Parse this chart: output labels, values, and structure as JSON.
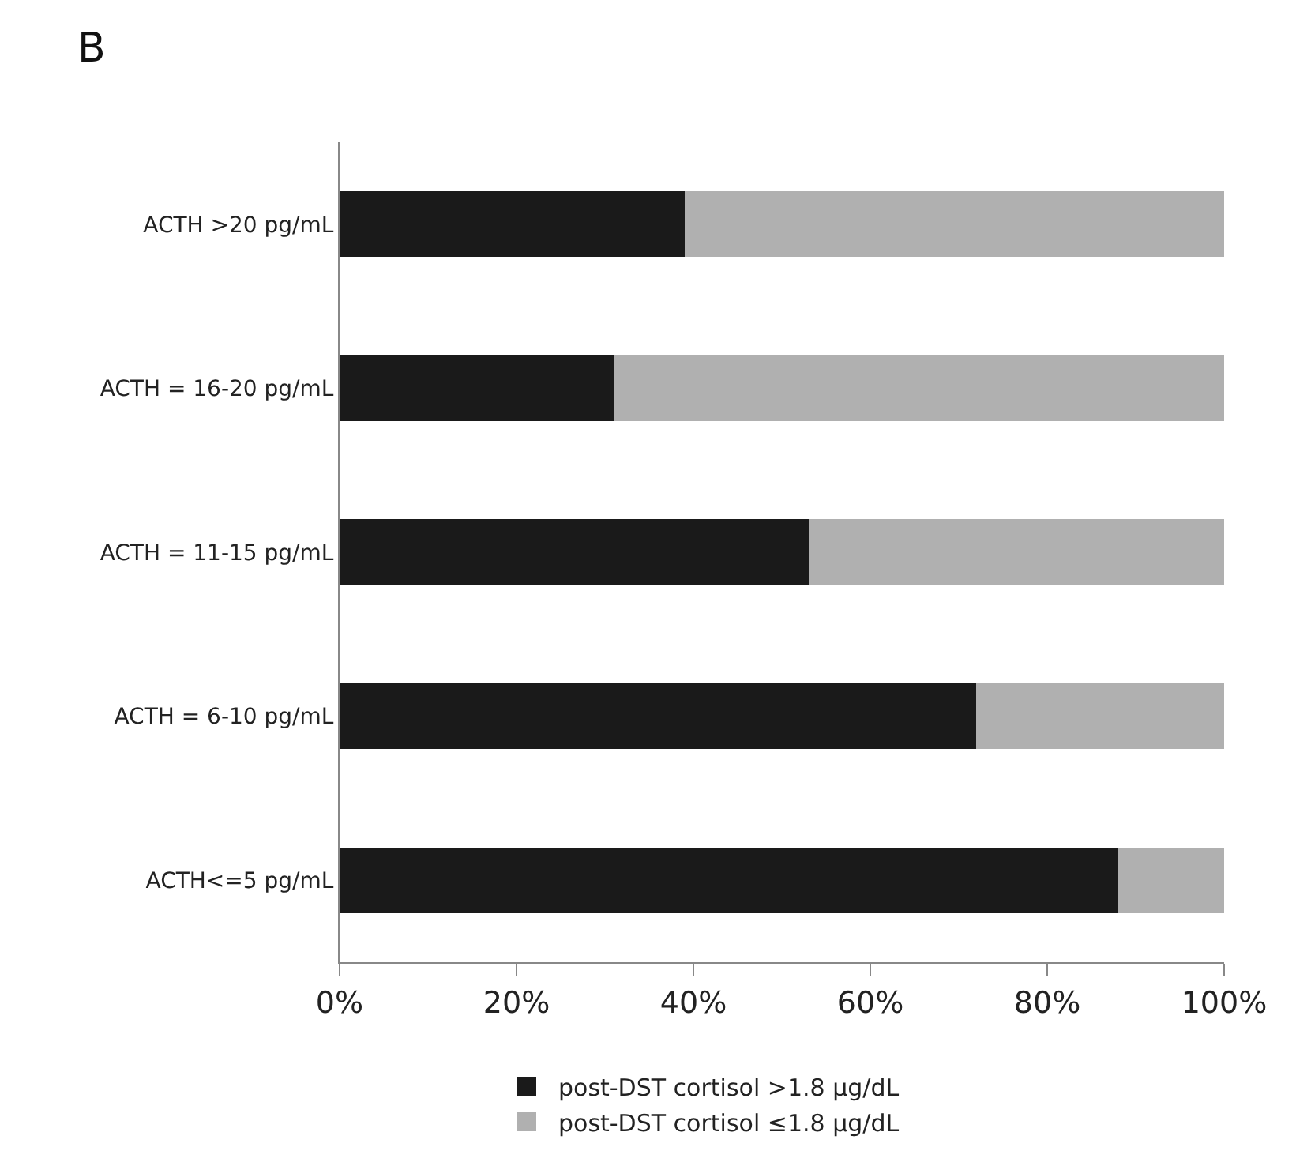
{
  "chart_data": {
    "type": "bar",
    "orientation": "horizontal",
    "stacked": true,
    "categories": [
      "ACTH >20 pg/mL",
      "ACTH = 16-20 pg/mL",
      "ACTH = 11-15 pg/mL",
      "ACTH = 6-10 pg/mL",
      "ACTH<=5 pg/mL"
    ],
    "series": [
      {
        "name": "post-DST cortisol >1.8 µg/dL",
        "color": "#1a1a1a",
        "values": [
          39,
          31,
          53,
          72,
          88
        ]
      },
      {
        "name": "post-DST cortisol ≤1.8 µg/dL",
        "color": "#b0b0b0",
        "values": [
          61,
          69,
          47,
          28,
          12
        ]
      }
    ],
    "xlim": [
      0,
      100
    ],
    "xticks": [
      {
        "value": 0,
        "label": "0%"
      },
      {
        "value": 20,
        "label": "20%"
      },
      {
        "value": 40,
        "label": "40%"
      },
      {
        "value": 60,
        "label": "60%"
      },
      {
        "value": 80,
        "label": "80%"
      },
      {
        "value": 100,
        "label": "100%"
      }
    ],
    "annotations": [
      "B"
    ],
    "legend": "bottom"
  }
}
